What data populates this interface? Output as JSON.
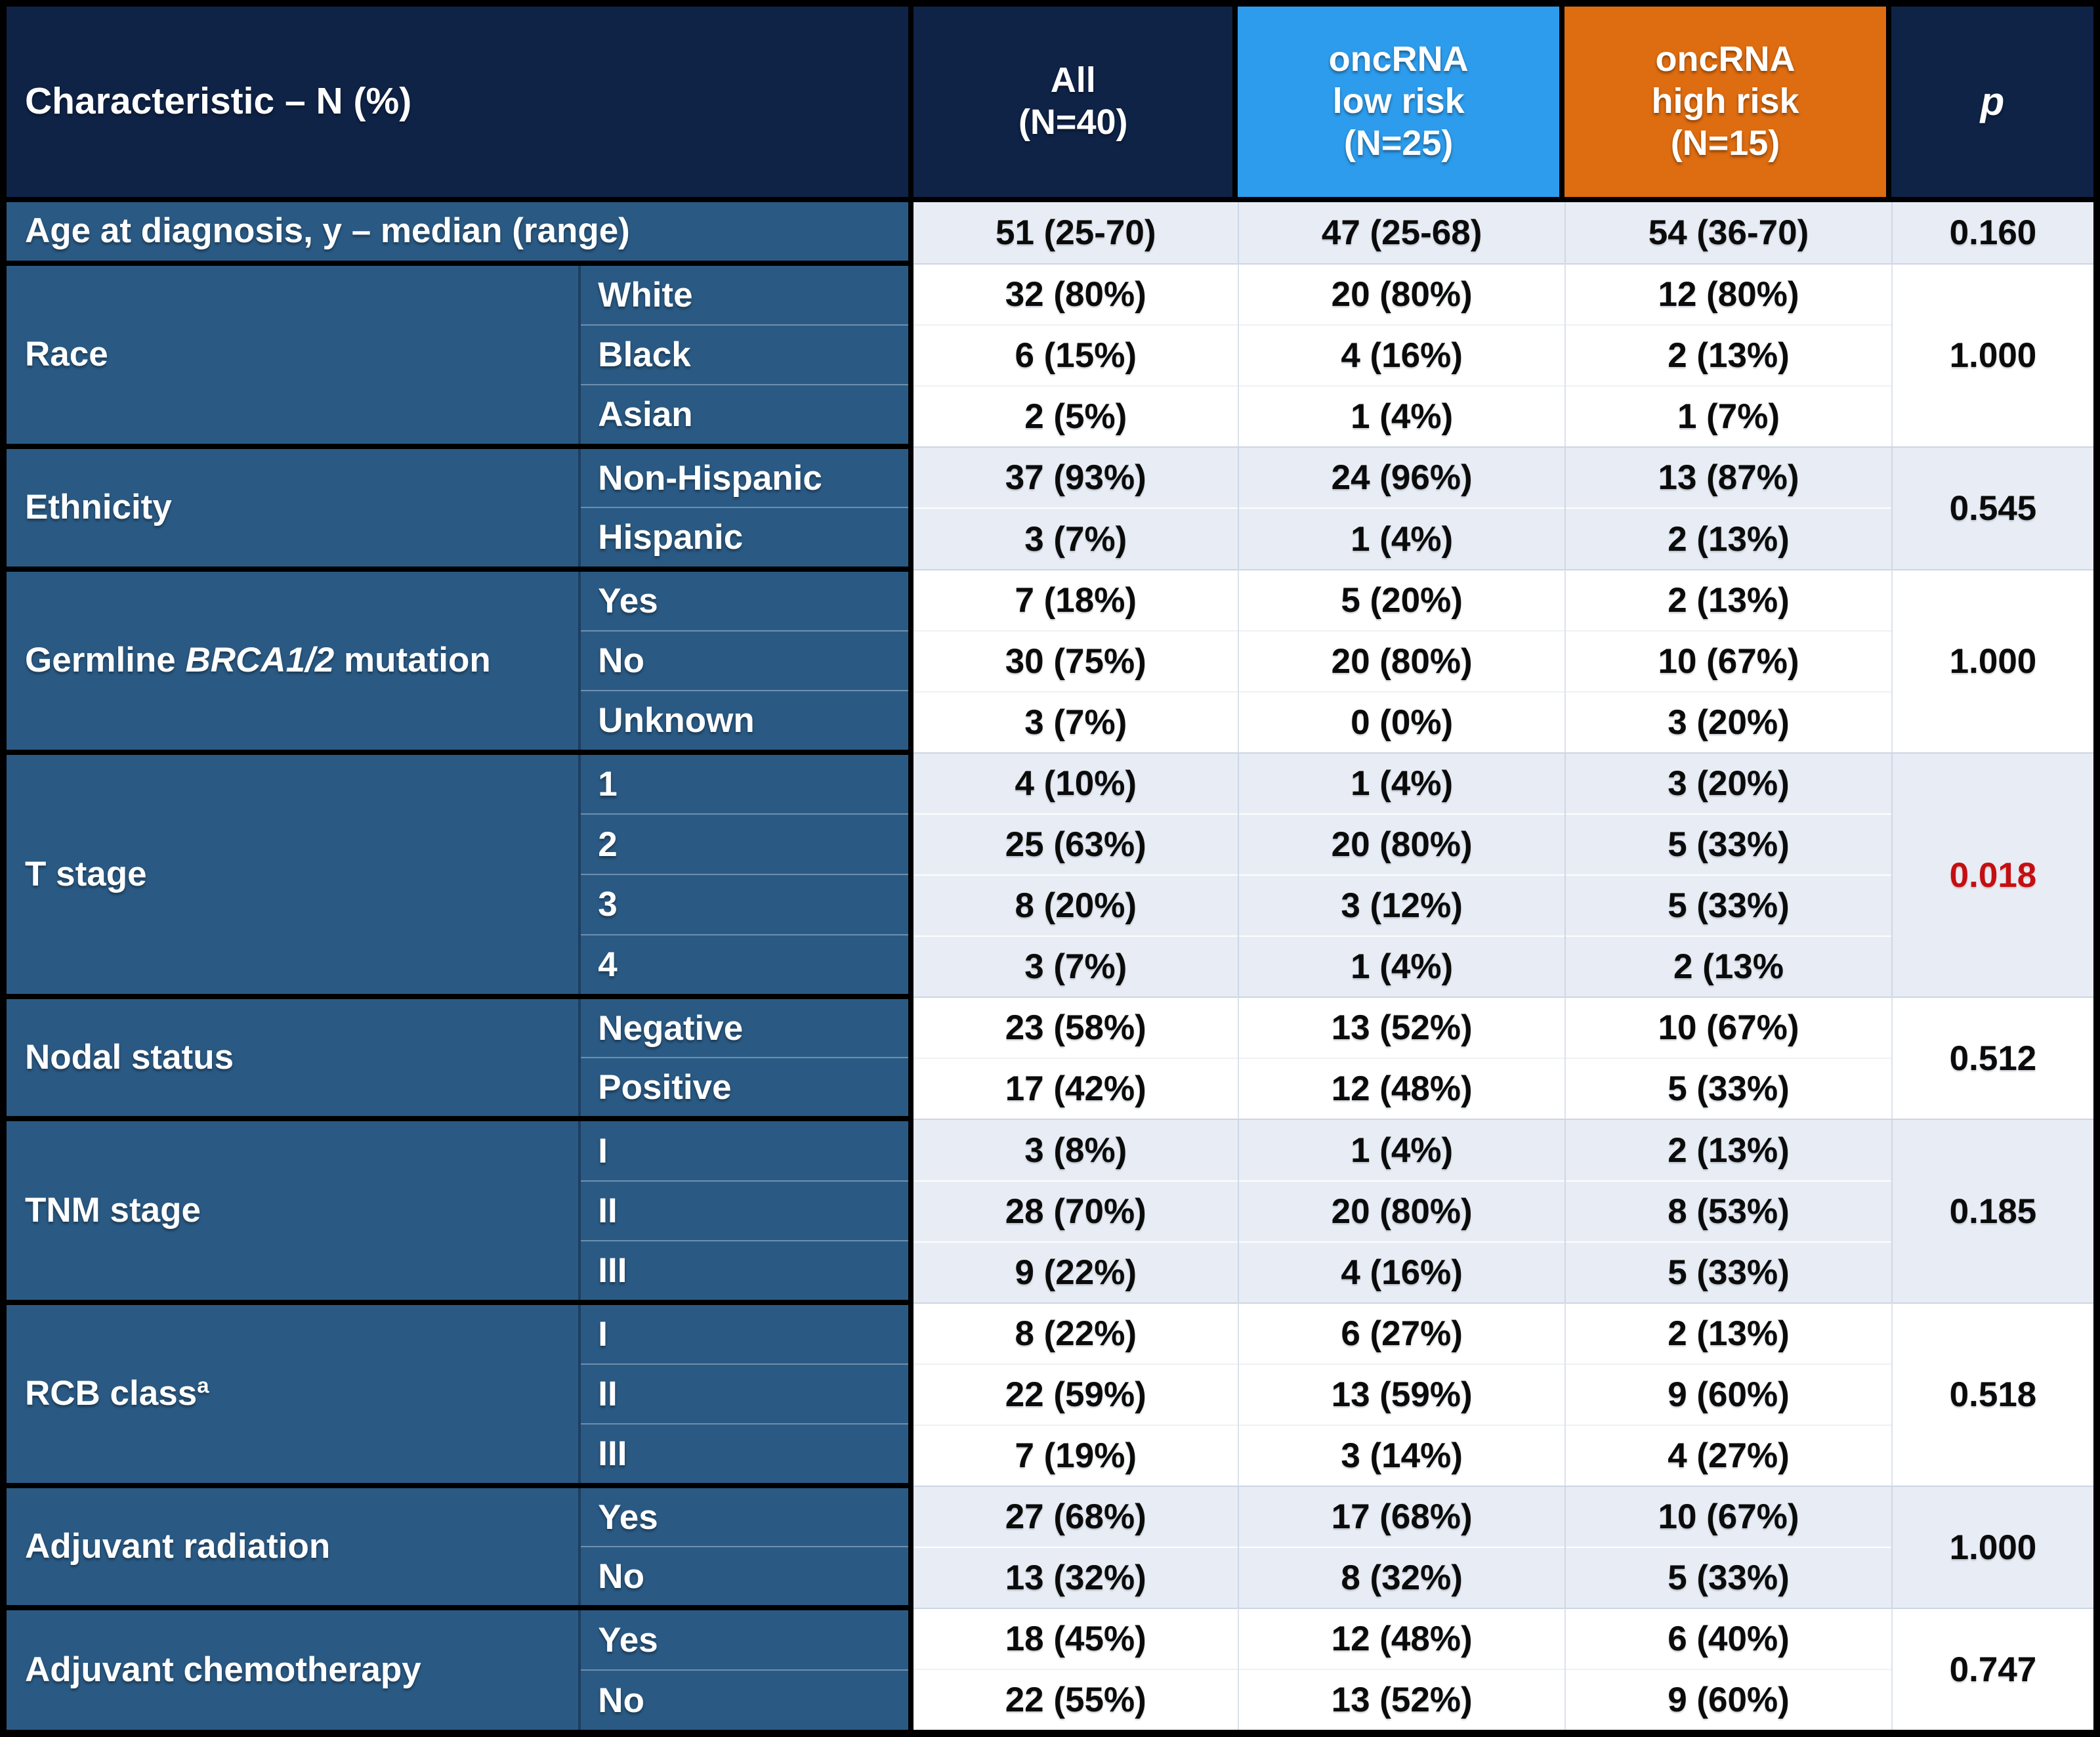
{
  "header": {
    "characteristic": "Characteristic – N (%)",
    "p": "p",
    "columns": [
      {
        "id": "all",
        "lines": [
          "All",
          "(N=40)"
        ]
      },
      {
        "id": "low",
        "lines": [
          "oncRNA",
          "low risk",
          "(N=25)"
        ]
      },
      {
        "id": "high",
        "lines": [
          "oncRNA",
          "high risk",
          "(N=15)"
        ]
      }
    ]
  },
  "groups": [
    {
      "name": "age",
      "shade": "light",
      "p": "0.160",
      "p_red": false,
      "label_parts": [
        {
          "t": "Age at diagnosis, y – median (range)"
        }
      ],
      "rows": [
        {
          "sub": "",
          "all": "51 (25-70)",
          "low": "47 (25-68)",
          "high": "54 (36-70)"
        }
      ]
    },
    {
      "name": "race",
      "shade": "white",
      "p": "1.000",
      "p_red": false,
      "label_parts": [
        {
          "t": "Race"
        }
      ],
      "rows": [
        {
          "sub": "White",
          "all": "32 (80%)",
          "low": "20 (80%)",
          "high": "12 (80%)"
        },
        {
          "sub": "Black",
          "all": "6 (15%)",
          "low": "4 (16%)",
          "high": "2 (13%)"
        },
        {
          "sub": "Asian",
          "all": "2 (5%)",
          "low": "1 (4%)",
          "high": "1 (7%)"
        }
      ]
    },
    {
      "name": "ethnicity",
      "shade": "light",
      "p": "0.545",
      "p_red": false,
      "label_parts": [
        {
          "t": "Ethnicity"
        }
      ],
      "rows": [
        {
          "sub": "Non-Hispanic",
          "all": "37 (93%)",
          "low": "24 (96%)",
          "high": "13 (87%)"
        },
        {
          "sub": "Hispanic",
          "all": "3 (7%)",
          "low": "1 (4%)",
          "high": "2 (13%)"
        }
      ]
    },
    {
      "name": "germline-brca-mutation",
      "shade": "white",
      "p": "1.000",
      "p_red": false,
      "label_parts": [
        {
          "t": "Germline "
        },
        {
          "t": "BRCA1/2",
          "italic": true
        },
        {
          "t": " mutation"
        }
      ],
      "rows": [
        {
          "sub": "Yes",
          "all": "7 (18%)",
          "low": "5 (20%)",
          "high": "2 (13%)"
        },
        {
          "sub": "No",
          "all": "30 (75%)",
          "low": "20 (80%)",
          "high": "10 (67%)"
        },
        {
          "sub": "Unknown",
          "all": "3 (7%)",
          "low": "0 (0%)",
          "high": "3 (20%)"
        }
      ]
    },
    {
      "name": "t-stage",
      "shade": "light",
      "p": "0.018",
      "p_red": true,
      "label_parts": [
        {
          "t": "T stage"
        }
      ],
      "rows": [
        {
          "sub": "1",
          "all": "4 (10%)",
          "low": "1 (4%)",
          "high": "3 (20%)"
        },
        {
          "sub": "2",
          "all": "25 (63%)",
          "low": "20 (80%)",
          "high": "5 (33%)"
        },
        {
          "sub": "3",
          "all": "8 (20%)",
          "low": "3 (12%)",
          "high": "5 (33%)"
        },
        {
          "sub": "4",
          "all": "3 (7%)",
          "low": "1 (4%)",
          "high": "2 (13%"
        }
      ]
    },
    {
      "name": "nodal-status",
      "shade": "white",
      "p": "0.512",
      "p_red": false,
      "label_parts": [
        {
          "t": "Nodal status"
        }
      ],
      "rows": [
        {
          "sub": "Negative",
          "all": "23 (58%)",
          "low": "13 (52%)",
          "high": "10 (67%)"
        },
        {
          "sub": "Positive",
          "all": "17 (42%)",
          "low": "12 (48%)",
          "high": "5 (33%)"
        }
      ]
    },
    {
      "name": "tnm-stage",
      "shade": "light",
      "p": "0.185",
      "p_red": false,
      "label_parts": [
        {
          "t": "TNM stage"
        }
      ],
      "rows": [
        {
          "sub": "I",
          "all": "3 (8%)",
          "low": "1 (4%)",
          "high": "2 (13%)"
        },
        {
          "sub": "II",
          "all": "28 (70%)",
          "low": "20 (80%)",
          "high": "8 (53%)"
        },
        {
          "sub": "III",
          "all": "9 (22%)",
          "low": "4 (16%)",
          "high": "5 (33%)"
        }
      ]
    },
    {
      "name": "rcb-class",
      "shade": "white",
      "p": "0.518",
      "p_red": false,
      "label_parts": [
        {
          "t": "RCB class"
        },
        {
          "t": "a",
          "sup": true
        }
      ],
      "rows": [
        {
          "sub": "I",
          "all": "8 (22%)",
          "low": "6 (27%)",
          "high": "2 (13%)"
        },
        {
          "sub": "II",
          "all": "22 (59%)",
          "low": "13 (59%)",
          "high": "9 (60%)"
        },
        {
          "sub": "III",
          "all": "7 (19%)",
          "low": "3 (14%)",
          "high": "4 (27%)"
        }
      ]
    },
    {
      "name": "adjuvant-radiation",
      "shade": "light",
      "p": "1.000",
      "p_red": false,
      "label_parts": [
        {
          "t": "Adjuvant radiation"
        }
      ],
      "rows": [
        {
          "sub": "Yes",
          "all": "27 (68%)",
          "low": "17 (68%)",
          "high": "10 (67%)"
        },
        {
          "sub": "No",
          "all": "13 (32%)",
          "low": "8 (32%)",
          "high": "5 (33%)"
        }
      ]
    },
    {
      "name": "adjuvant-chemotherapy",
      "shade": "white",
      "p": "0.747",
      "p_red": false,
      "label_parts": [
        {
          "t": "Adjuvant chemotherapy"
        }
      ],
      "rows": [
        {
          "sub": "Yes",
          "all": "18 (45%)",
          "low": "12 (48%)",
          "high": "6 (40%)"
        },
        {
          "sub": "No",
          "all": "22 (55%)",
          "low": "13 (52%)",
          "high": "9 (60%)"
        }
      ]
    }
  ],
  "colors": {
    "header_navy": "#0F2347",
    "label_blue": "#2A5A84",
    "low_risk_blue": "#2D9CEC",
    "high_risk_orange": "#DE6C10",
    "row_light": "#E8EDF5",
    "row_white": "#FFFFFF",
    "p_red": "#C40F12",
    "grid_black": "#000000"
  }
}
